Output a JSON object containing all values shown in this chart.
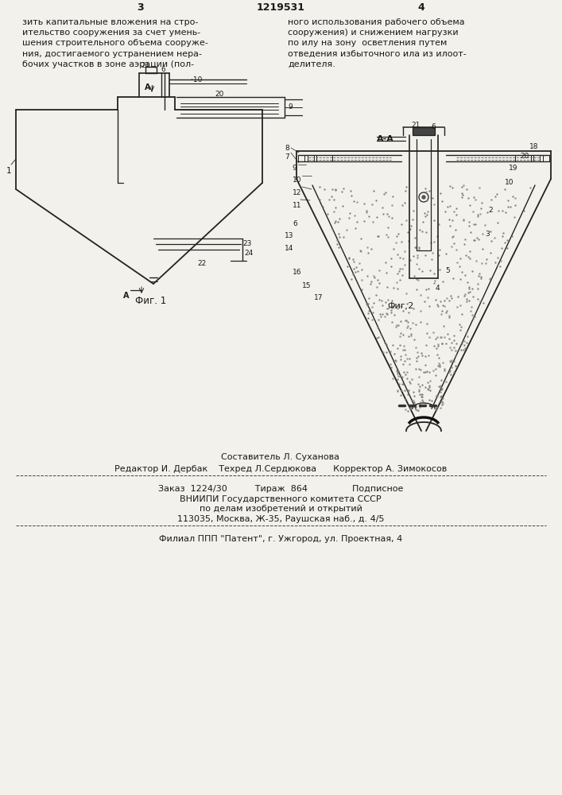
{
  "page_color": "#f2f1ec",
  "patent_number": "1219531",
  "page_left": "3",
  "page_right": "4",
  "text_left_col": "зить капитальные вложения на стро-\nительство сооружения за счет умень-\nшения строительного объема сооруже-\nния, достигаемого устранением нера-\nбочих участков в зоне аэрации (пол-",
  "text_right_col": "ного использования рабочего объема\nсооружения) и снижением нагрузки\nпо илу на зону  осветления путем\nотведения избыточного ила из илоот-\nделителя.",
  "editor_line": "Редактор И. Дербак    Техред Л.Сердюкова      Корректор А. Зимокосов",
  "compiler_line": "Составитель Л. Суханова",
  "order_line": "Заказ  1224/30          Тираж  864                Подписное",
  "vniiipi_line1": "ВНИИПИ Государственного комитета СССР",
  "vniiipi_line2": "по делам изобретений и открытий",
  "vniiipi_line3": "113035, Москва, Ж-35, Раушская наб., д. 4/5",
  "filial_line": "Филиал ППП \"Патент\", г. Ужгород, ул. Проектная, 4"
}
